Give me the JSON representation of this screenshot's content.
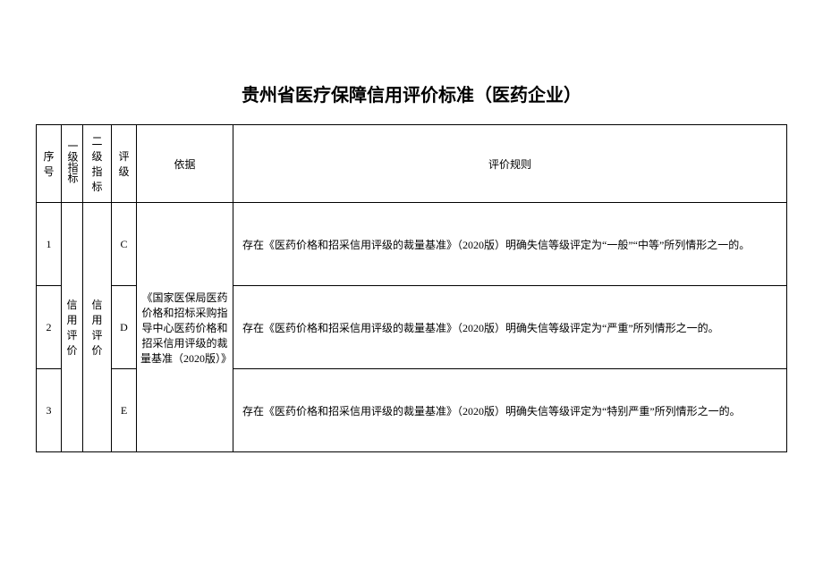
{
  "title": "贵州省医疗保障信用评价标准（医药企业）",
  "title_fontsize": 20,
  "body_fontsize": 12,
  "headers": {
    "seq": "序号",
    "lv1": "一级指标",
    "lv2": "二级指标",
    "grade": "评级",
    "basis": "依据",
    "rule": "评价规则"
  },
  "merged": {
    "lv1": "信用评价",
    "lv2": "信用评价",
    "basis": "《国家医保局医药价格和招标采购指导中心医药价格和招采信用评级的裁量基准（2020版）》"
  },
  "rows": [
    {
      "seq": "1",
      "grade": "C",
      "rule": "存在《医药价格和招采信用评级的裁量基准》（2020版）明确失信等级评定为“一般”“中等”所列情形之一的。"
    },
    {
      "seq": "2",
      "grade": "D",
      "rule": "存在《医药价格和招采信用评级的裁量基准》（2020版）明确失信等级评定为“严重”所列情形之一的。"
    },
    {
      "seq": "3",
      "grade": "E",
      "rule": "存在《医药价格和招采信用评级的裁量基准》（2020版）明确失信等级评定为“特别严重”所列情形之一的。"
    }
  ],
  "columns": {
    "seq_width": 28,
    "lv1_width": 24,
    "lv2_width": 32,
    "grade_width": 28,
    "basis_width": 108
  },
  "colors": {
    "border": "#000000",
    "text": "#000000",
    "background": "#ffffff"
  }
}
